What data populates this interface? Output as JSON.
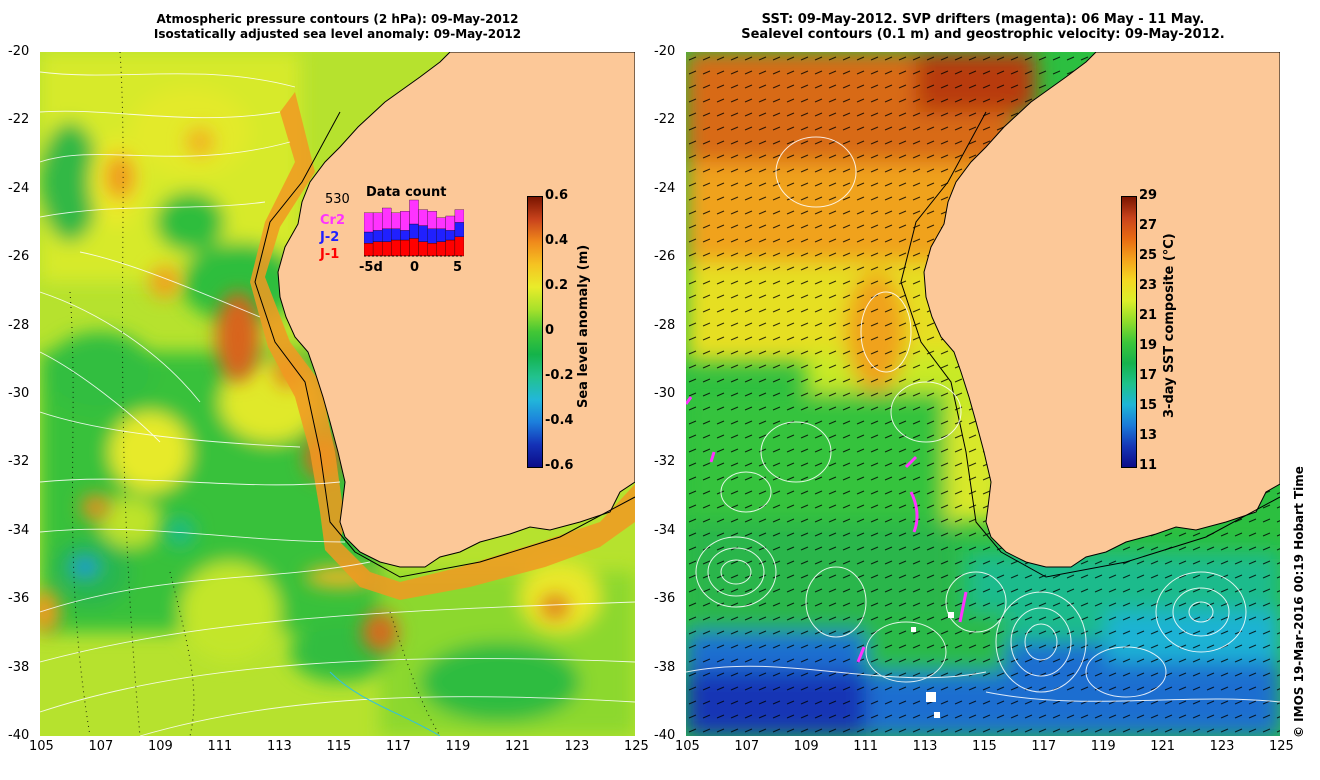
{
  "left_panel": {
    "title_line1": "Atmospheric pressure contours (2 hPa): 09-May-2012",
    "title_line2": "Isostatically adjusted sea level anomaly: 09-May-2012",
    "colorbar": {
      "label": "Sea level anomaly (m)",
      "ticks": [
        "0.6",
        "0.4",
        "0.2",
        "0",
        "-0.2",
        "-0.4",
        "-0.6"
      ],
      "colors": [
        "#7a1500",
        "#c9431c",
        "#f08a1b",
        "#f5c322",
        "#e9ec2a",
        "#a7e12b",
        "#42c635",
        "#14b34a",
        "#22c28f",
        "#22b7d9",
        "#1c7fdc",
        "#1432b7",
        "#0c0c88"
      ]
    },
    "data_count": {
      "title": "Data count",
      "total": "530",
      "labels": [
        "Cr2",
        "J-2",
        "J-1"
      ],
      "label_colors": [
        "#ff33ff",
        "#2020ff",
        "#ff0000"
      ],
      "x_ticks": [
        "-5d",
        "0",
        "5"
      ],
      "bars": [
        {
          "j1": 8,
          "j2": 7,
          "cr2": 12
        },
        {
          "j1": 9,
          "j2": 7,
          "cr2": 11
        },
        {
          "j1": 9,
          "j2": 8,
          "cr2": 13
        },
        {
          "j1": 10,
          "j2": 7,
          "cr2": 10
        },
        {
          "j1": 10,
          "j2": 6,
          "cr2": 12
        },
        {
          "j1": 11,
          "j2": 9,
          "cr2": 15
        },
        {
          "j1": 9,
          "j2": 10,
          "cr2": 10
        },
        {
          "j1": 8,
          "j2": 9,
          "cr2": 11
        },
        {
          "j1": 9,
          "j2": 8,
          "cr2": 7
        },
        {
          "j1": 10,
          "j2": 6,
          "cr2": 9
        },
        {
          "j1": 12,
          "j2": 9,
          "cr2": 8
        }
      ]
    }
  },
  "right_panel": {
    "title_line1": "SST: 09-May-2012. SVP drifters (magenta): 06 May - 11 May.",
    "title_line2": "Sealevel contours (0.1 m) and geostrophic velocity: 09-May-2012.",
    "colorbar": {
      "label": "3-day SST composite (°C)",
      "ticks": [
        "29",
        "27",
        "25",
        "23",
        "21",
        "19",
        "17",
        "15",
        "13",
        "11"
      ],
      "colors": [
        "#7a1500",
        "#c9431c",
        "#e86a12",
        "#f4a21c",
        "#f5d722",
        "#dcef2a",
        "#8fdc2a",
        "#3cc63a",
        "#16b24c",
        "#1ec28a",
        "#1eb5d6",
        "#1b7ad8",
        "#1536b5",
        "#0c0c88"
      ]
    }
  },
  "axes": {
    "x_ticks": [
      "105",
      "107",
      "109",
      "111",
      "113",
      "115",
      "117",
      "119",
      "121",
      "123",
      "125"
    ],
    "y_ticks": [
      "-20",
      "-22",
      "-24",
      "-26",
      "-28",
      "-30",
      "-32",
      "-34",
      "-36",
      "-38",
      "-40"
    ]
  },
  "credit": "© IMOS 19-Mar-2016 00:19 Hobart Time",
  "colors": {
    "land": "#fcc898",
    "coast": "#000000",
    "contour": "#ffffff",
    "drifter": "#ff33ff"
  }
}
